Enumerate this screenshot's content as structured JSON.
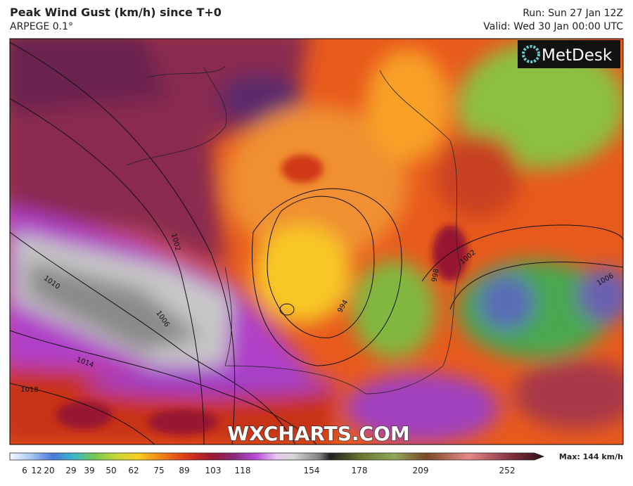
{
  "header": {
    "title": "Peak Wind Gust (km/h) since T+0",
    "model": "ARPEGE 0.1°",
    "run": "Run: Sun 27 Jan 12Z",
    "valid": "Valid: Wed 30 Jan 00:00 UTC"
  },
  "logo": "MetDesk",
  "watermark": "WXCHARTS.COM",
  "isobar_labels": [
    1002,
    1010,
    1006,
    1014,
    1018,
    994,
    998,
    1002,
    1006
  ],
  "legend": {
    "ticks": [
      6,
      12,
      20,
      29,
      39,
      50,
      62,
      75,
      89,
      103,
      118,
      154,
      178,
      209,
      252
    ],
    "max": "Max: 144 km/h"
  }
}
